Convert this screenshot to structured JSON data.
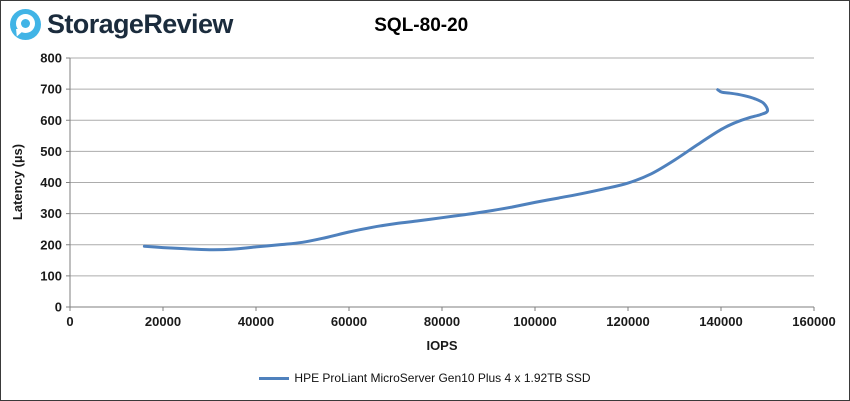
{
  "header": {
    "brand": "StorageReview",
    "title": "SQL-80-20"
  },
  "colors": {
    "series_blue": "#4F81BD",
    "logo_blue": "#41B4E6",
    "brand_navy": "#1B2C3D",
    "grid_gray": "#ACACAC",
    "axis_gray": "#7F7F7F"
  },
  "chart_data": {
    "type": "line",
    "title": "SQL-80-20",
    "xlabel": "IOPS",
    "ylabel": "Latency (µs)",
    "xlim": [
      0,
      160000
    ],
    "ylim": [
      0,
      800
    ],
    "xticks": [
      0,
      20000,
      40000,
      60000,
      80000,
      100000,
      120000,
      140000,
      160000
    ],
    "yticks": [
      0,
      100,
      200,
      300,
      400,
      500,
      600,
      700,
      800
    ],
    "grid": "horizontal-only",
    "legend_position": "bottom-center",
    "series": [
      {
        "name": "HPE ProLiant MicroServer Gen10 Plus 4 x 1.92TB SSD",
        "color": "#4F81BD",
        "points": [
          [
            16000,
            195
          ],
          [
            20000,
            191
          ],
          [
            25000,
            187
          ],
          [
            30000,
            184
          ],
          [
            35000,
            186
          ],
          [
            40000,
            193
          ],
          [
            45000,
            200
          ],
          [
            50000,
            208
          ],
          [
            55000,
            223
          ],
          [
            60000,
            241
          ],
          [
            65000,
            256
          ],
          [
            70000,
            268
          ],
          [
            75000,
            277
          ],
          [
            80000,
            287
          ],
          [
            85000,
            297
          ],
          [
            90000,
            308
          ],
          [
            95000,
            321
          ],
          [
            100000,
            336
          ],
          [
            105000,
            350
          ],
          [
            110000,
            364
          ],
          [
            115000,
            380
          ],
          [
            120000,
            398
          ],
          [
            125000,
            428
          ],
          [
            130000,
            472
          ],
          [
            135000,
            522
          ],
          [
            140000,
            570
          ],
          [
            143000,
            592
          ],
          [
            146000,
            608
          ],
          [
            148500,
            618
          ],
          [
            150000,
            630
          ],
          [
            149200,
            654
          ],
          [
            147300,
            669
          ],
          [
            145000,
            679
          ],
          [
            142000,
            687
          ],
          [
            140200,
            690
          ],
          [
            139300,
            698
          ]
        ]
      }
    ]
  }
}
